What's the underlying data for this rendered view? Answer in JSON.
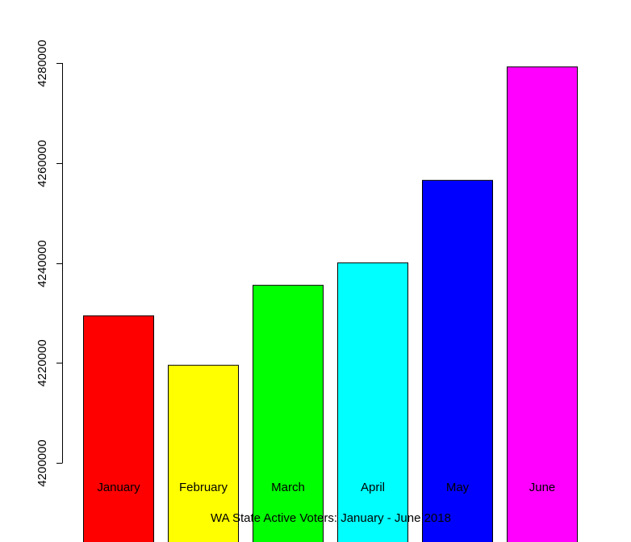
{
  "chart_data": {
    "type": "bar",
    "title": "",
    "xlabel": "",
    "ylabel": "",
    "categories": [
      "January",
      "February",
      "March",
      "April",
      "May",
      "June"
    ],
    "values": [
      4229500,
      4219600,
      4235600,
      4240100,
      4256600,
      4279300
    ],
    "colors": [
      "#ff0000",
      "#ffff00",
      "#00ff00",
      "#00ffff",
      "#0000ff",
      "#ff00ff"
    ],
    "ylim": [
      4200000,
      4280000
    ],
    "yticks": [
      4200000,
      4220000,
      4240000,
      4260000,
      4280000
    ],
    "ytick_labels": [
      "4200000",
      "4220000",
      "4240000",
      "4260000",
      "4280000"
    ],
    "grid": false,
    "legend": "none",
    "annotation": "WA State Active Voters: January - June 2018"
  }
}
